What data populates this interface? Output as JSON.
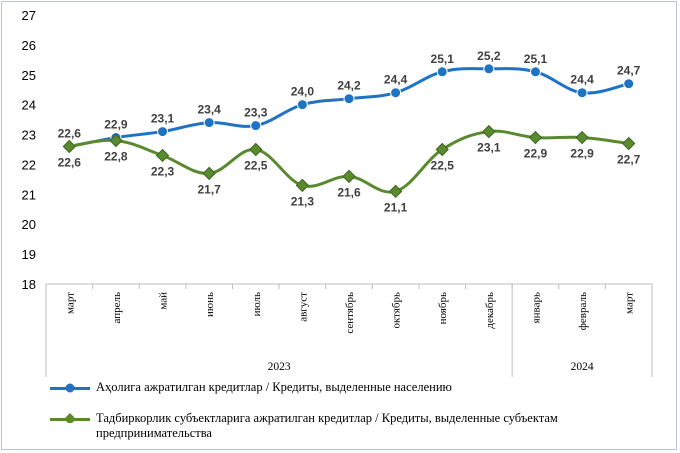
{
  "chart_data": {
    "type": "line",
    "categories": [
      "март",
      "апрель",
      "май",
      "июнь",
      "июль",
      "август",
      "сентябрь",
      "октябрь",
      "ноябрь",
      "декабрь",
      "январь",
      "февраль",
      "март"
    ],
    "year_groups": [
      {
        "label": "2023",
        "from": 0,
        "to": 9
      },
      {
        "label": "2024",
        "from": 10,
        "to": 12
      }
    ],
    "ylim": [
      18,
      27
    ],
    "yticks": [
      18,
      19,
      20,
      21,
      22,
      23,
      24,
      25,
      26,
      27
    ],
    "series": [
      {
        "name": "Аҳолига ажратилган кредитлар / Кредиты, выделенные населению",
        "color": "#1f73c4",
        "marker": "circle",
        "values": [
          22.6,
          22.9,
          23.1,
          23.4,
          23.3,
          24.0,
          24.2,
          24.4,
          25.1,
          25.2,
          25.1,
          24.4,
          24.7
        ],
        "value_labels": [
          "22,6",
          "22,9",
          "23,1",
          "23,4",
          "23,3",
          "24,0",
          "24,2",
          "24,4",
          "25,1",
          "25,2",
          "25,1",
          "24,4",
          "24,7"
        ]
      },
      {
        "name": "Тадбиркорлик субъектларига ажратилган кредитлар / Кредиты, выделенные субъектам предпринимательства",
        "color": "#5a8a2e",
        "marker": "diamond",
        "values": [
          22.6,
          22.8,
          22.3,
          21.7,
          22.5,
          21.3,
          21.6,
          21.1,
          22.5,
          23.1,
          22.9,
          22.9,
          22.7
        ],
        "value_labels": [
          "22,6",
          "22,8",
          "22,3",
          "21,7",
          "22,5",
          "21,3",
          "21,6",
          "21,1",
          "22,5",
          "23,1",
          "22,9",
          "22,9",
          "22,7"
        ]
      }
    ],
    "grid": false,
    "legend": "bottom"
  }
}
